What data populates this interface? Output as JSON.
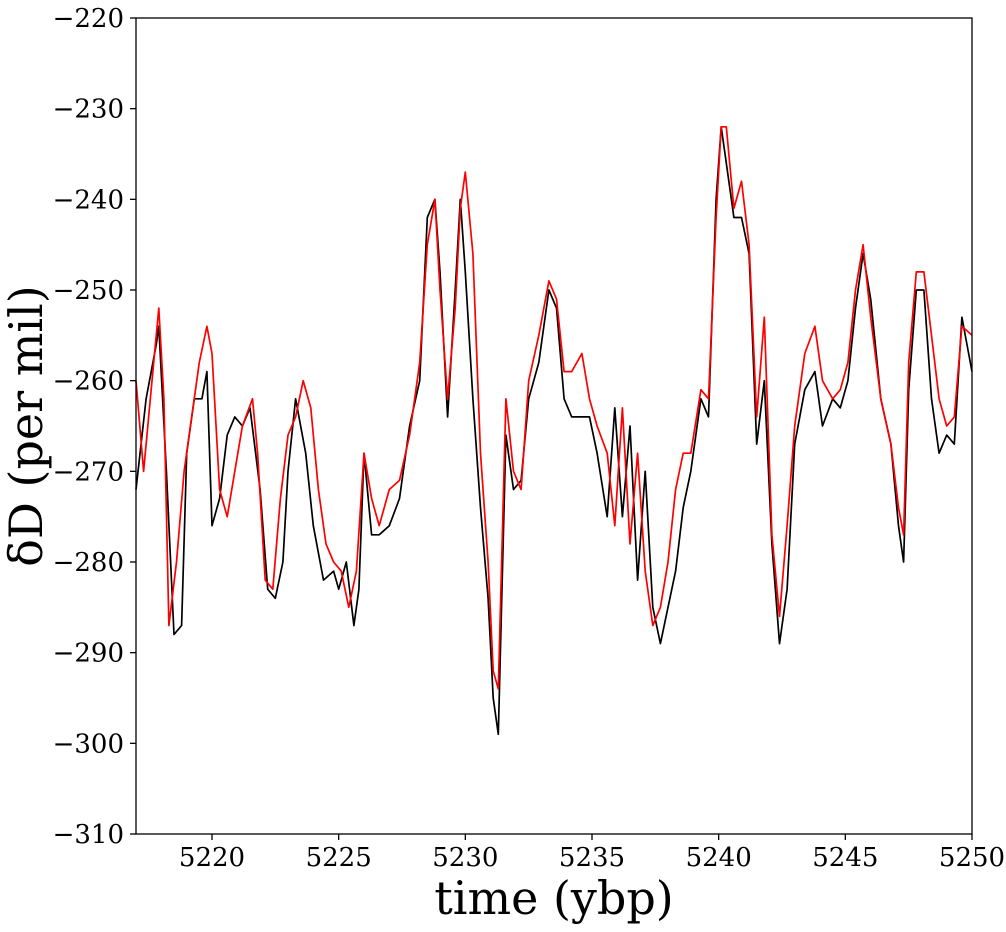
{
  "chart_data": {
    "type": "line",
    "title": "",
    "xlabel": "time (ybp)",
    "ylabel": "δD (per mil)",
    "xlim": [
      5217,
      5250
    ],
    "ylim": [
      -310,
      -220
    ],
    "xticks": [
      5220,
      5225,
      5230,
      5235,
      5240,
      5245,
      5250
    ],
    "yticks": [
      -310,
      -300,
      -290,
      -280,
      -270,
      -260,
      -250,
      -240,
      -230,
      -220
    ],
    "xtick_labels": [
      "5220",
      "5225",
      "5230",
      "5235",
      "5240",
      "5245",
      "5250"
    ],
    "ytick_labels": [
      "−310",
      "−300",
      "−290",
      "−280",
      "−270",
      "−260",
      "−250",
      "−240",
      "−230",
      "−220"
    ],
    "grid": false,
    "series": [
      {
        "color": "#000000",
        "x": [
          5217.0,
          5217.4,
          5217.8,
          5217.9,
          5218.2,
          5218.5,
          5218.8,
          5219.0,
          5219.3,
          5219.6,
          5219.8,
          5220.0,
          5220.3,
          5220.6,
          5220.9,
          5221.2,
          5221.5,
          5221.9,
          5222.2,
          5222.5,
          5222.8,
          5223.0,
          5223.3,
          5223.7,
          5224.0,
          5224.4,
          5224.8,
          5225.0,
          5225.3,
          5225.6,
          5225.8,
          5226.0,
          5226.3,
          5226.6,
          5227.0,
          5227.4,
          5227.8,
          5228.2,
          5228.5,
          5228.8,
          5229.0,
          5229.3,
          5229.6,
          5229.8,
          5230.0,
          5230.3,
          5230.6,
          5230.9,
          5231.1,
          5231.3,
          5231.6,
          5231.9,
          5232.2,
          5232.5,
          5232.9,
          5233.3,
          5233.6,
          5233.9,
          5234.2,
          5234.6,
          5234.9,
          5235.2,
          5235.6,
          5235.9,
          5236.2,
          5236.5,
          5236.8,
          5237.1,
          5237.4,
          5237.7,
          5238.0,
          5238.3,
          5238.6,
          5238.9,
          5239.3,
          5239.6,
          5239.9,
          5240.1,
          5240.3,
          5240.6,
          5240.9,
          5241.2,
          5241.5,
          5241.8,
          5242.1,
          5242.4,
          5242.7,
          5243.0,
          5243.4,
          5243.8,
          5244.1,
          5244.5,
          5244.8,
          5245.1,
          5245.4,
          5245.7,
          5246.0,
          5246.4,
          5246.8,
          5247.1,
          5247.3,
          5247.5,
          5247.8,
          5248.1,
          5248.4,
          5248.7,
          5249.0,
          5249.3,
          5249.6,
          5250.0
        ],
        "y": [
          -272,
          -262,
          -256,
          -254,
          -270,
          -288,
          -287,
          -268,
          -262,
          -262,
          -259,
          -276,
          -273,
          -266,
          -264,
          -265,
          -263,
          -272,
          -283,
          -284,
          -280,
          -270,
          -262,
          -268,
          -276,
          -282,
          -281,
          -283,
          -280,
          -287,
          -283,
          -268,
          -277,
          -277,
          -276,
          -273,
          -265,
          -260,
          -242,
          -240,
          -248,
          -264,
          -250,
          -240,
          -248,
          -262,
          -274,
          -284,
          -295,
          -299,
          -266,
          -272,
          -271,
          -262,
          -258,
          -250,
          -252,
          -262,
          -264,
          -264,
          -264,
          -268,
          -275,
          -263,
          -275,
          -265,
          -282,
          -270,
          -285,
          -289,
          -285,
          -281,
          -274,
          -270,
          -262,
          -264,
          -240,
          -232,
          -236,
          -242,
          -242,
          -246,
          -267,
          -260,
          -278,
          -289,
          -283,
          -267,
          -261,
          -259,
          -265,
          -262,
          -263,
          -260,
          -252,
          -246,
          -251,
          -262,
          -267,
          -276,
          -280,
          -261,
          -250,
          -250,
          -262,
          -268,
          -266,
          -267,
          -253,
          -259
        ]
      },
      {
        "color": "#ff0000",
        "x": [
          5217.0,
          5217.3,
          5217.7,
          5217.9,
          5218.1,
          5218.3,
          5218.6,
          5218.9,
          5219.2,
          5219.5,
          5219.8,
          5220.0,
          5220.3,
          5220.6,
          5220.9,
          5221.2,
          5221.6,
          5221.8,
          5222.1,
          5222.4,
          5222.7,
          5223.0,
          5223.3,
          5223.6,
          5223.9,
          5224.2,
          5224.5,
          5224.8,
          5225.1,
          5225.4,
          5225.7,
          5226.0,
          5226.3,
          5226.6,
          5227.0,
          5227.4,
          5227.8,
          5228.2,
          5228.5,
          5228.8,
          5229.0,
          5229.3,
          5229.6,
          5229.8,
          5230.0,
          5230.3,
          5230.6,
          5230.9,
          5231.1,
          5231.3,
          5231.6,
          5231.9,
          5232.2,
          5232.5,
          5232.9,
          5233.3,
          5233.6,
          5233.9,
          5234.2,
          5234.6,
          5234.9,
          5235.2,
          5235.6,
          5235.9,
          5236.2,
          5236.5,
          5236.8,
          5237.1,
          5237.4,
          5237.7,
          5238.0,
          5238.3,
          5238.6,
          5238.9,
          5239.3,
          5239.6,
          5239.9,
          5240.1,
          5240.3,
          5240.6,
          5240.9,
          5241.2,
          5241.5,
          5241.8,
          5242.1,
          5242.4,
          5242.7,
          5243.0,
          5243.4,
          5243.8,
          5244.1,
          5244.5,
          5244.8,
          5245.1,
          5245.4,
          5245.7,
          5246.0,
          5246.4,
          5246.8,
          5247.1,
          5247.3,
          5247.5,
          5247.8,
          5248.1,
          5248.4,
          5248.7,
          5249.0,
          5249.3,
          5249.6,
          5250.0
        ],
        "y": [
          -260,
          -270,
          -258,
          -252,
          -262,
          -287,
          -280,
          -270,
          -264,
          -258,
          -254,
          -257,
          -272,
          -275,
          -270,
          -265,
          -262,
          -268,
          -282,
          -283,
          -273,
          -266,
          -264,
          -260,
          -263,
          -272,
          -278,
          -280,
          -281,
          -285,
          -281,
          -268,
          -273,
          -276,
          -272,
          -271,
          -266,
          -258,
          -245,
          -240,
          -250,
          -262,
          -252,
          -241,
          -237,
          -246,
          -268,
          -280,
          -292,
          -294,
          -262,
          -270,
          -272,
          -260,
          -255,
          -249,
          -251,
          -259,
          -259,
          -257,
          -262,
          -265,
          -268,
          -276,
          -263,
          -278,
          -268,
          -281,
          -287,
          -285,
          -280,
          -272,
          -268,
          -268,
          -261,
          -262,
          -242,
          -232,
          -232,
          -241,
          -238,
          -245,
          -264,
          -253,
          -277,
          -286,
          -276,
          -265,
          -257,
          -254,
          -260,
          -262,
          -261,
          -258,
          -250,
          -245,
          -253,
          -262,
          -267,
          -274,
          -277,
          -258,
          -248,
          -248,
          -255,
          -262,
          -265,
          -264,
          -254,
          -255
        ]
      }
    ]
  }
}
